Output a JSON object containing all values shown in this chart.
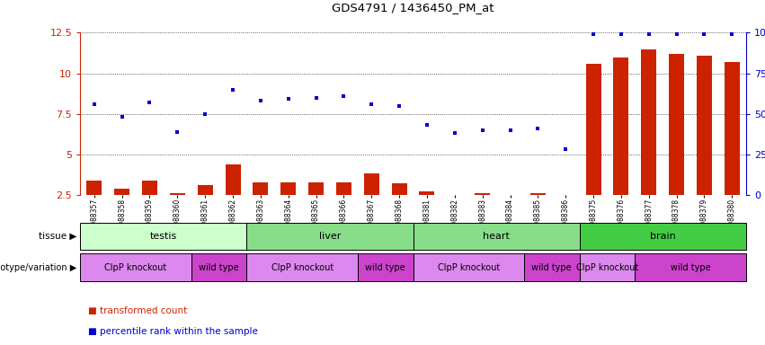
{
  "title": "GDS4791 / 1436450_PM_at",
  "samples": [
    "GSM988357",
    "GSM988358",
    "GSM988359",
    "GSM988360",
    "GSM988361",
    "GSM988362",
    "GSM988363",
    "GSM988364",
    "GSM988365",
    "GSM988366",
    "GSM988367",
    "GSM988368",
    "GSM988381",
    "GSM988382",
    "GSM988383",
    "GSM988384",
    "GSM988385",
    "GSM988386",
    "GSM988375",
    "GSM988376",
    "GSM988377",
    "GSM988378",
    "GSM988379",
    "GSM988380"
  ],
  "bar_values": [
    3.4,
    2.9,
    3.4,
    2.6,
    3.1,
    4.4,
    3.3,
    3.3,
    3.3,
    3.3,
    3.8,
    3.2,
    2.7,
    2.5,
    2.6,
    2.5,
    2.6,
    2.5,
    10.6,
    11.0,
    11.5,
    11.2,
    11.1,
    10.7
  ],
  "dot_values": [
    8.1,
    7.3,
    8.2,
    6.4,
    7.5,
    9.0,
    8.3,
    8.4,
    8.5,
    8.6,
    8.1,
    8.0,
    6.8,
    6.3,
    6.5,
    6.5,
    6.6,
    5.3,
    12.4,
    12.4,
    12.4,
    12.4,
    12.4,
    12.4
  ],
  "bar_color": "#cc2200",
  "dot_color": "#0000cc",
  "ylim_left": [
    2.5,
    12.5
  ],
  "yticks_left": [
    2.5,
    5.0,
    7.5,
    10.0,
    12.5
  ],
  "ylim_right": [
    0,
    100
  ],
  "yticks_right": [
    0,
    25,
    50,
    75,
    100
  ],
  "tissue_groups": [
    {
      "label": "testis",
      "start": 0,
      "end": 6,
      "color": "#ccffcc"
    },
    {
      "label": "liver",
      "start": 6,
      "end": 12,
      "color": "#88dd88"
    },
    {
      "label": "heart",
      "start": 12,
      "end": 18,
      "color": "#88dd88"
    },
    {
      "label": "brain",
      "start": 18,
      "end": 24,
      "color": "#44cc44"
    }
  ],
  "genotype_groups": [
    {
      "label": "ClpP knockout",
      "start": 0,
      "end": 4,
      "color": "#dd88ee"
    },
    {
      "label": "wild type",
      "start": 4,
      "end": 6,
      "color": "#cc44cc"
    },
    {
      "label": "ClpP knockout",
      "start": 6,
      "end": 10,
      "color": "#dd88ee"
    },
    {
      "label": "wild type",
      "start": 10,
      "end": 12,
      "color": "#cc44cc"
    },
    {
      "label": "ClpP knockout",
      "start": 12,
      "end": 16,
      "color": "#dd88ee"
    },
    {
      "label": "wild type",
      "start": 16,
      "end": 18,
      "color": "#cc44cc"
    },
    {
      "label": "ClpP knockout",
      "start": 18,
      "end": 20,
      "color": "#dd88ee"
    },
    {
      "label": "wild type",
      "start": 20,
      "end": 24,
      "color": "#cc44cc"
    }
  ],
  "tissue_row_label": "tissue",
  "genotype_row_label": "genotype/variation",
  "legend_bar": "transformed count",
  "legend_dot": "percentile rank within the sample",
  "n_samples": 24
}
